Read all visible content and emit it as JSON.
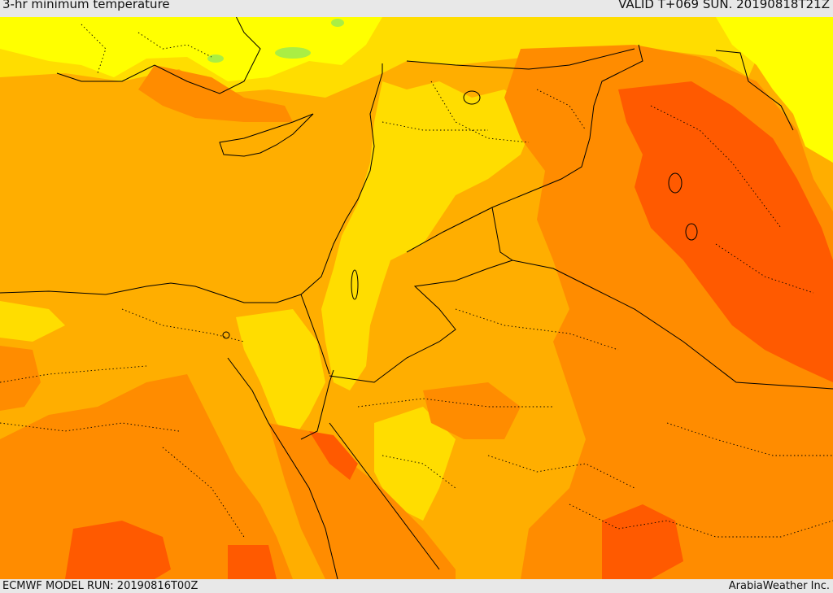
{
  "header": {
    "title": "3-hr minimum temperature",
    "valid": "VALID T+069 SUN. 20190818T21Z"
  },
  "footer": {
    "model_run": "ECMWF MODEL RUN: 20190816T00Z",
    "credit": "ArabiaWeather Inc."
  },
  "palette": {
    "yellow_light": "#ffff00",
    "yellow": "#ffdd00",
    "amber": "#ffae00",
    "orange": "#ff8c00",
    "orange_dark": "#ff5a00",
    "green_patch": "#aaee44"
  }
}
